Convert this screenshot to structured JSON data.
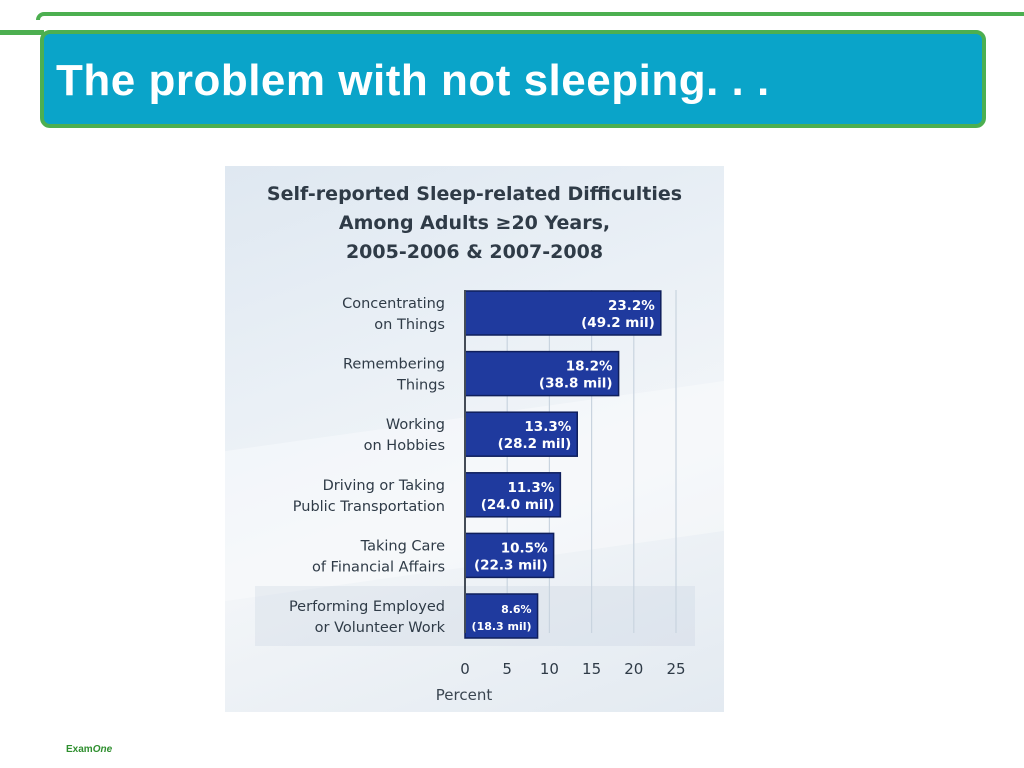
{
  "slide": {
    "title": "The problem with not sleeping.  .  .",
    "footer_logo": {
      "part1": "Exam",
      "part2": "One"
    },
    "colors": {
      "title_bg": "#0aa4c9",
      "accent_green": "#4caf50",
      "bar": "#1f3a9e"
    }
  },
  "chart_data": {
    "type": "bar",
    "orientation": "horizontal",
    "title": [
      "Self-reported Sleep-related Difficulties",
      "Among Adults ≥20 Years,",
      "2005-2006 & 2007-2008"
    ],
    "xlabel": "Percent",
    "xlim": [
      0,
      25
    ],
    "xticks": [
      0,
      5,
      10,
      15,
      20,
      25
    ],
    "categories": [
      [
        "Concentrating",
        "on Things"
      ],
      [
        "Remembering",
        "Things"
      ],
      [
        "Working",
        "on Hobbies"
      ],
      [
        "Driving or Taking",
        "Public Transportation"
      ],
      [
        "Taking Care",
        "of Financial Affairs"
      ],
      [
        "Performing Employed",
        "or Volunteer Work"
      ]
    ],
    "values": [
      23.2,
      18.2,
      13.3,
      11.3,
      10.5,
      8.6
    ],
    "value_labels": [
      "23.2%",
      "18.2%",
      "13.3%",
      "11.3%",
      "10.5%",
      "8.6%"
    ],
    "count_labels": [
      "(49.2 mil)",
      "(38.8 mil)",
      "(28.2 mil)",
      "(24.0 mil)",
      "(22.3 mil)",
      "(18.3 mil)"
    ]
  }
}
